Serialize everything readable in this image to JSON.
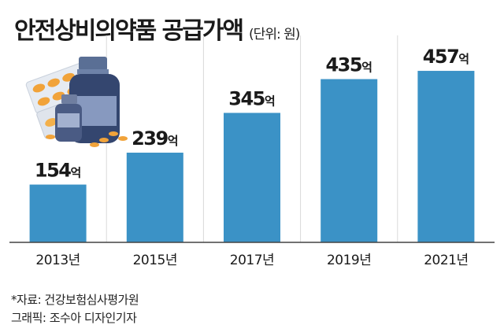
{
  "title": "안전상비의약품 공급가액",
  "unit_note": "(단위: 원)",
  "value_suffix": "억",
  "source": "*자료: 건강보험심사평가원",
  "credit": "그래픽: 조수아 디자인기자",
  "colors": {
    "bar": "#3b92c6",
    "axis": "#444444",
    "grid": "#d9d9d9",
    "text": "#1a1a1a"
  },
  "illustration": {
    "icon": "medicine-bottles-and-pills-icon"
  },
  "chart_data": {
    "type": "bar",
    "title": "안전상비의약품 공급가액",
    "categories": [
      "2013년",
      "2015년",
      "2017년",
      "2019년",
      "2021년"
    ],
    "values": [
      154,
      239,
      345,
      435,
      457
    ],
    "unit": "억 원",
    "ylim": [
      0,
      520
    ],
    "grid": true,
    "legend": "none"
  }
}
